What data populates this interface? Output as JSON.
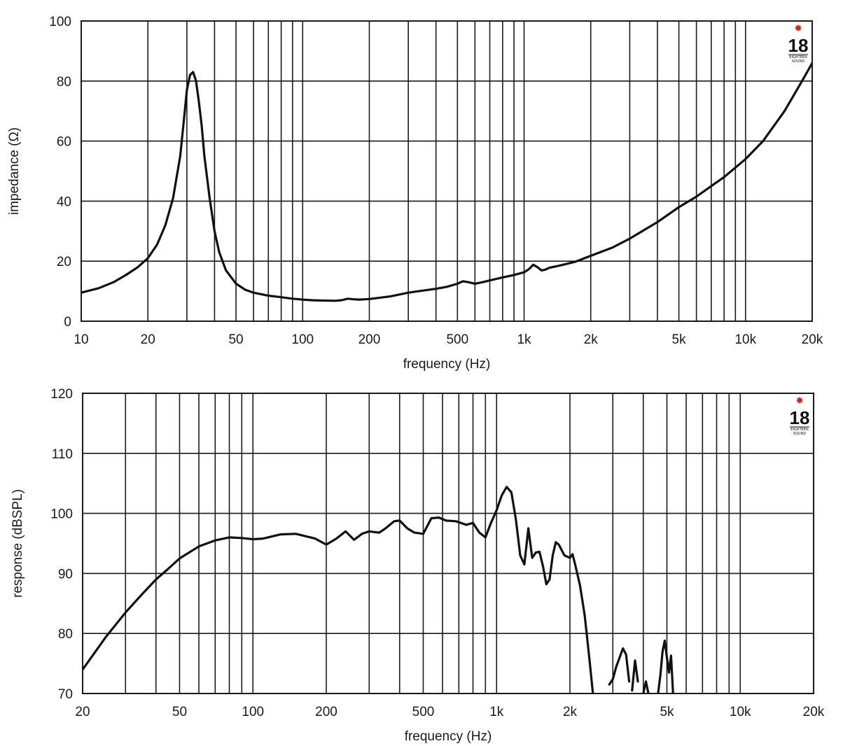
{
  "logo": {
    "text": "18",
    "subtext": [
      "EIGHTEEN",
      "SOUND"
    ],
    "star_color": "#e0201b"
  },
  "chart_data": [
    {
      "type": "line",
      "x_scale": "log",
      "xlabel": "frequency (Hz)",
      "ylabel": "impedance (Ω)",
      "xlim": [
        10,
        20000
      ],
      "ylim": [
        0,
        100
      ],
      "grid": true,
      "x_ticks": [
        {
          "value": 10,
          "label": "10"
        },
        {
          "value": 20,
          "label": "20"
        },
        {
          "value": 50,
          "label": "50"
        },
        {
          "value": 100,
          "label": "100"
        },
        {
          "value": 200,
          "label": "200"
        },
        {
          "value": 500,
          "label": "500"
        },
        {
          "value": 1000,
          "label": "1k"
        },
        {
          "value": 2000,
          "label": "2k"
        },
        {
          "value": 5000,
          "label": "5k"
        },
        {
          "value": 10000,
          "label": "10k"
        },
        {
          "value": 20000,
          "label": "20k"
        }
      ],
      "y_ticks": [
        {
          "value": 0,
          "label": "0"
        },
        {
          "value": 20,
          "label": "20"
        },
        {
          "value": 40,
          "label": "40"
        },
        {
          "value": 60,
          "label": "60"
        },
        {
          "value": 80,
          "label": "80"
        },
        {
          "value": 100,
          "label": "100"
        }
      ],
      "series": [
        {
          "x": [
            10,
            12,
            14,
            16,
            18,
            20,
            22,
            24,
            26,
            28,
            29,
            30,
            31,
            32,
            33,
            34,
            35,
            36,
            38,
            40,
            42,
            45,
            50,
            55,
            60,
            70,
            80,
            90,
            100,
            110,
            120,
            140,
            150,
            160,
            170,
            180,
            200,
            250,
            300,
            350,
            400,
            450,
            500,
            530,
            560,
            600,
            650,
            700,
            800,
            900,
            1000,
            1050,
            1100,
            1150,
            1200,
            1250,
            1300,
            1400,
            1500,
            1700,
            2000,
            2500,
            3000,
            4000,
            5000,
            6000,
            7000,
            8000,
            10000,
            12000,
            15000,
            18000,
            20000
          ],
          "y": [
            9.5,
            11,
            13,
            15.5,
            18,
            21,
            25.5,
            32,
            41,
            55,
            66,
            77,
            82,
            83,
            80,
            73,
            65,
            55,
            41,
            30,
            23,
            17,
            12.5,
            10.5,
            9.5,
            8.5,
            8,
            7.5,
            7.2,
            7,
            6.9,
            6.8,
            7,
            7.5,
            7.3,
            7.2,
            7.4,
            8.3,
            9.5,
            10.2,
            10.8,
            11.5,
            12.5,
            13.3,
            13,
            12.5,
            13,
            13.6,
            14.6,
            15.4,
            16.3,
            17.3,
            18.8,
            18,
            16.9,
            17.2,
            17.8,
            18.3,
            18.8,
            19.8,
            21.8,
            24.5,
            27.5,
            33,
            38,
            41.5,
            45,
            48,
            54,
            60,
            70,
            80,
            86
          ]
        }
      ]
    },
    {
      "type": "line",
      "x_scale": "log",
      "xlabel": "frequency (Hz)",
      "ylabel": "response (dBSPL)",
      "xlim": [
        20,
        20000
      ],
      "ylim": [
        70,
        120
      ],
      "grid": true,
      "x_ticks": [
        {
          "value": 20,
          "label": "20"
        },
        {
          "value": 50,
          "label": "50"
        },
        {
          "value": 100,
          "label": "100"
        },
        {
          "value": 200,
          "label": "200"
        },
        {
          "value": 500,
          "label": "500"
        },
        {
          "value": 1000,
          "label": "1k"
        },
        {
          "value": 2000,
          "label": "2k"
        },
        {
          "value": 5000,
          "label": "5k"
        },
        {
          "value": 10000,
          "label": "10k"
        },
        {
          "value": 20000,
          "label": "20k"
        }
      ],
      "y_ticks": [
        {
          "value": 70,
          "label": "70"
        },
        {
          "value": 80,
          "label": "80"
        },
        {
          "value": 90,
          "label": "90"
        },
        {
          "value": 100,
          "label": "100"
        },
        {
          "value": 110,
          "label": "110"
        },
        {
          "value": 120,
          "label": "120"
        }
      ],
      "series": [
        {
          "segments": [
            {
              "x": [
                20,
                25,
                30,
                35,
                40,
                45,
                50,
                60,
                70,
                80,
                90,
                100,
                110,
                130,
                150,
                180,
                200,
                220,
                240,
                260,
                280,
                300,
                330,
                350,
                380,
                400,
                430,
                460,
                500,
                540,
                580,
                620,
                680,
                750,
                800,
                850,
                900,
                950,
                1000,
                1050,
                1100,
                1150,
                1200,
                1250,
                1300,
                1350,
                1400,
                1450,
                1500,
                1550,
                1600,
                1650,
                1700,
                1750,
                1800,
                1900,
                2000,
                2050,
                2100,
                2200,
                2300,
                2400,
                2500
              ],
              "y": [
                74,
                79.5,
                83.5,
                86.5,
                89,
                90.8,
                92.5,
                94.5,
                95.5,
                96,
                95.9,
                95.7,
                95.8,
                96.5,
                96.6,
                95.8,
                94.8,
                95.8,
                97,
                95.6,
                96.6,
                97,
                96.8,
                97.5,
                98.7,
                98.8,
                97.5,
                96.8,
                96.6,
                99.2,
                99.3,
                98.8,
                98.7,
                98.1,
                98.4,
                96.8,
                96,
                98.5,
                100.5,
                103,
                104.4,
                103.5,
                99,
                93,
                91.5,
                97.5,
                92.6,
                93.5,
                93.6,
                91.2,
                88.2,
                89,
                93,
                95.2,
                94.8,
                93,
                92.6,
                93.2,
                91.5,
                88,
                83,
                76,
                69
              ]
            },
            {
              "x": [
                2900,
                3000,
                3100,
                3200,
                3300,
                3400,
                3500
              ],
              "y": [
                71.5,
                72.4,
                74.5,
                76,
                77.5,
                76.5,
                72
              ]
            },
            {
              "x": [
                3600,
                3700,
                3800
              ],
              "y": [
                70.5,
                75.5,
                72
              ]
            },
            {
              "x": [
                4000,
                4100,
                4200
              ],
              "y": [
                70,
                72,
                70
              ]
            },
            {
              "x": [
                4600,
                4700,
                4800,
                4900,
                5000,
                5100,
                5200,
                5300
              ],
              "y": [
                70,
                73,
                77,
                78.8,
                76,
                73.5,
                76.3,
                70
              ]
            }
          ]
        }
      ]
    }
  ]
}
